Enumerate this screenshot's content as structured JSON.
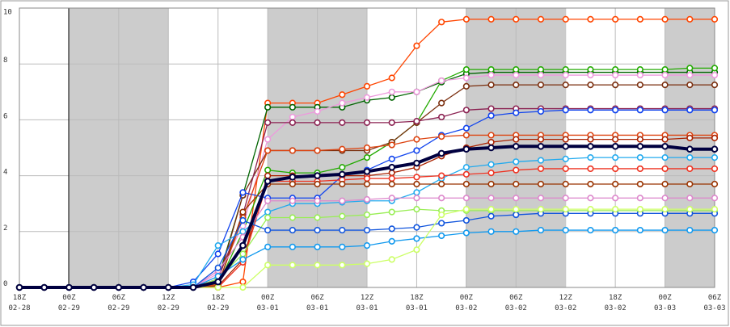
{
  "chart_data": {
    "type": "line",
    "categories": [
      "18Z",
      null,
      "00Z",
      null,
      "06Z",
      null,
      "12Z",
      null,
      "18Z",
      null,
      "00Z",
      null,
      "06Z",
      null,
      "12Z",
      null,
      "18Z",
      null,
      "00Z",
      null,
      "06Z",
      null,
      "12Z",
      null,
      "18Z",
      null,
      "00Z",
      null,
      "06Z"
    ],
    "category_dates": [
      "02-28",
      null,
      "02-29",
      null,
      "02-29",
      null,
      "02-29",
      null,
      "02-29",
      null,
      "03-01",
      null,
      "03-01",
      null,
      "03-01",
      null,
      "03-01",
      null,
      "03-02",
      null,
      "03-02",
      null,
      "03-02",
      null,
      "03-02",
      null,
      "03-03",
      null,
      "03-03"
    ],
    "ylim": [
      0,
      10
    ],
    "yticks": [
      0,
      2,
      4,
      6,
      8,
      10
    ],
    "grid": true,
    "series": [
      {
        "color": "#ff4500",
        "values": [
          0,
          0,
          0,
          0,
          0,
          0,
          0,
          0,
          0,
          0.2,
          6.6,
          6.6,
          6.6,
          6.9,
          7.2,
          7.5,
          8.65,
          9.5,
          9.6,
          9.6,
          9.6,
          9.6,
          9.6,
          9.6,
          9.6,
          9.6,
          9.6,
          9.6,
          9.6
        ]
      },
      {
        "color": "#006400",
        "values": [
          0,
          0,
          0,
          0,
          0,
          0,
          0,
          0,
          0.3,
          3.3,
          6.45,
          6.45,
          6.45,
          6.45,
          6.7,
          6.8,
          7.0,
          7.35,
          7.65,
          7.7,
          7.7,
          7.7,
          7.7,
          7.7,
          7.7,
          7.7,
          7.7,
          7.7,
          7.7
        ]
      },
      {
        "color": "#22aa00",
        "values": [
          0,
          0,
          0,
          0,
          0,
          0,
          0,
          0,
          0.1,
          2.0,
          4.2,
          4.1,
          4.1,
          4.3,
          4.65,
          5.2,
          5.9,
          7.4,
          7.8,
          7.8,
          7.8,
          7.8,
          7.8,
          7.8,
          7.8,
          7.8,
          7.8,
          7.85,
          7.85
        ]
      },
      {
        "color": "#ee99dd",
        "values": [
          0,
          0,
          0,
          0,
          0,
          0,
          0,
          0,
          0.5,
          2.2,
          5.3,
          6.1,
          6.3,
          6.6,
          6.8,
          7.0,
          7.0,
          7.4,
          7.5,
          7.6,
          7.6,
          7.6,
          7.6,
          7.6,
          7.6,
          7.6,
          7.6,
          7.6,
          7.6
        ]
      },
      {
        "color": "#7a2e0e",
        "values": [
          0,
          0,
          0,
          0,
          0,
          0,
          0,
          0,
          0.2,
          3.3,
          4.9,
          4.9,
          4.9,
          4.9,
          4.9,
          5.2,
          5.9,
          6.6,
          7.2,
          7.25,
          7.25,
          7.25,
          7.25,
          7.25,
          7.25,
          7.25,
          7.25,
          7.25,
          7.25
        ]
      },
      {
        "color": "#8b2252",
        "values": [
          0,
          0,
          0,
          0,
          0,
          0,
          0,
          0,
          0.3,
          2.6,
          5.9,
          5.9,
          5.9,
          5.9,
          5.9,
          5.9,
          5.95,
          6.1,
          6.35,
          6.4,
          6.4,
          6.4,
          6.4,
          6.4,
          6.4,
          6.4,
          6.4,
          6.4,
          6.4
        ]
      },
      {
        "color": "#1144ee",
        "values": [
          0,
          0,
          0,
          0,
          0,
          0,
          0,
          0.2,
          1.2,
          3.4,
          3.2,
          3.2,
          3.2,
          4.0,
          4.2,
          4.6,
          4.9,
          5.45,
          5.7,
          6.15,
          6.25,
          6.3,
          6.35,
          6.35,
          6.35,
          6.35,
          6.35,
          6.35,
          6.35
        ]
      },
      {
        "color": "#dd4411",
        "values": [
          0,
          0,
          0,
          0,
          0,
          0,
          0,
          0,
          0.1,
          2.5,
          4.9,
          4.9,
          4.9,
          4.95,
          5.0,
          5.1,
          5.3,
          5.4,
          5.45,
          5.45,
          5.45,
          5.45,
          5.45,
          5.45,
          5.45,
          5.45,
          5.45,
          5.45,
          5.45
        ]
      },
      {
        "color": "#aa2200",
        "values": [
          0,
          0,
          0,
          0,
          0,
          0,
          0,
          0,
          0.05,
          1.0,
          4.0,
          4.0,
          4.0,
          4.0,
          4.0,
          4.1,
          4.3,
          4.7,
          5.0,
          5.2,
          5.3,
          5.3,
          5.3,
          5.3,
          5.3,
          5.3,
          5.3,
          5.35,
          5.35
        ]
      },
      {
        "color": "#22aaee",
        "values": [
          0,
          0,
          0,
          0,
          0,
          0,
          0,
          0.1,
          1.5,
          2.0,
          2.7,
          3.0,
          3.0,
          3.05,
          3.1,
          3.1,
          3.4,
          3.9,
          4.3,
          4.4,
          4.5,
          4.55,
          4.6,
          4.65,
          4.65,
          4.65,
          4.65,
          4.65,
          4.65
        ]
      },
      {
        "color": "#ee3322",
        "values": [
          0,
          0,
          0,
          0,
          0,
          0,
          0,
          0,
          0,
          0.9,
          3.8,
          3.8,
          3.8,
          3.85,
          3.9,
          3.9,
          3.95,
          4.0,
          4.05,
          4.1,
          4.2,
          4.25,
          4.25,
          4.25,
          4.25,
          4.25,
          4.25,
          4.25,
          4.25
        ]
      },
      {
        "color": "#993300",
        "values": [
          0,
          0,
          0,
          0,
          0,
          0,
          0,
          0,
          0.05,
          2.7,
          3.7,
          3.7,
          3.7,
          3.7,
          3.7,
          3.7,
          3.7,
          3.7,
          3.7,
          3.7,
          3.7,
          3.7,
          3.7,
          3.7,
          3.7,
          3.7,
          3.7,
          3.7,
          3.7
        ]
      },
      {
        "color": "#dd88cc",
        "values": [
          0,
          0,
          0,
          0,
          0,
          0,
          0,
          0,
          0.6,
          1.8,
          3.1,
          3.1,
          3.1,
          3.1,
          3.15,
          3.2,
          3.2,
          3.2,
          3.2,
          3.2,
          3.2,
          3.2,
          3.2,
          3.2,
          3.2,
          3.2,
          3.2,
          3.2,
          3.2
        ]
      },
      {
        "color": "#99ee55",
        "values": [
          0,
          0,
          0,
          0,
          0,
          0,
          0,
          0,
          0.3,
          1.2,
          2.5,
          2.5,
          2.5,
          2.55,
          2.6,
          2.7,
          2.8,
          2.75,
          2.75,
          2.75,
          2.75,
          2.75,
          2.75,
          2.75,
          2.75,
          2.75,
          2.75,
          2.75,
          2.75
        ]
      },
      {
        "color": "#1155dd",
        "values": [
          0,
          0,
          0,
          0,
          0,
          0,
          0,
          0,
          0.7,
          2.4,
          2.05,
          2.05,
          2.05,
          2.05,
          2.05,
          2.1,
          2.15,
          2.3,
          2.4,
          2.55,
          2.6,
          2.65,
          2.65,
          2.65,
          2.65,
          2.65,
          2.65,
          2.65,
          2.65
        ]
      },
      {
        "color": "#1199ee",
        "values": [
          0,
          0,
          0,
          0,
          0,
          0,
          0,
          0,
          0.4,
          1.0,
          1.45,
          1.45,
          1.45,
          1.45,
          1.5,
          1.65,
          1.75,
          1.85,
          1.95,
          2.0,
          2.0,
          2.05,
          2.05,
          2.05,
          2.05,
          2.05,
          2.05,
          2.05,
          2.05
        ]
      },
      {
        "color": "#ccff66",
        "values": [
          0,
          0,
          0,
          0,
          0,
          0,
          0,
          0,
          0,
          0,
          0.8,
          0.8,
          0.8,
          0.8,
          0.85,
          1.0,
          1.35,
          2.6,
          2.8,
          2.8,
          2.8,
          2.8,
          2.8,
          2.8,
          2.8,
          2.8,
          2.8,
          2.8,
          2.8
        ]
      },
      {
        "color": "#000040",
        "values": [
          0,
          0,
          0,
          0,
          0,
          0,
          0,
          0,
          0.2,
          1.5,
          3.8,
          3.95,
          4.0,
          4.05,
          4.15,
          4.3,
          4.45,
          4.8,
          4.95,
          5.0,
          5.05,
          5.05,
          5.05,
          5.05,
          5.05,
          5.05,
          5.05,
          4.95,
          4.95
        ]
      }
    ]
  }
}
